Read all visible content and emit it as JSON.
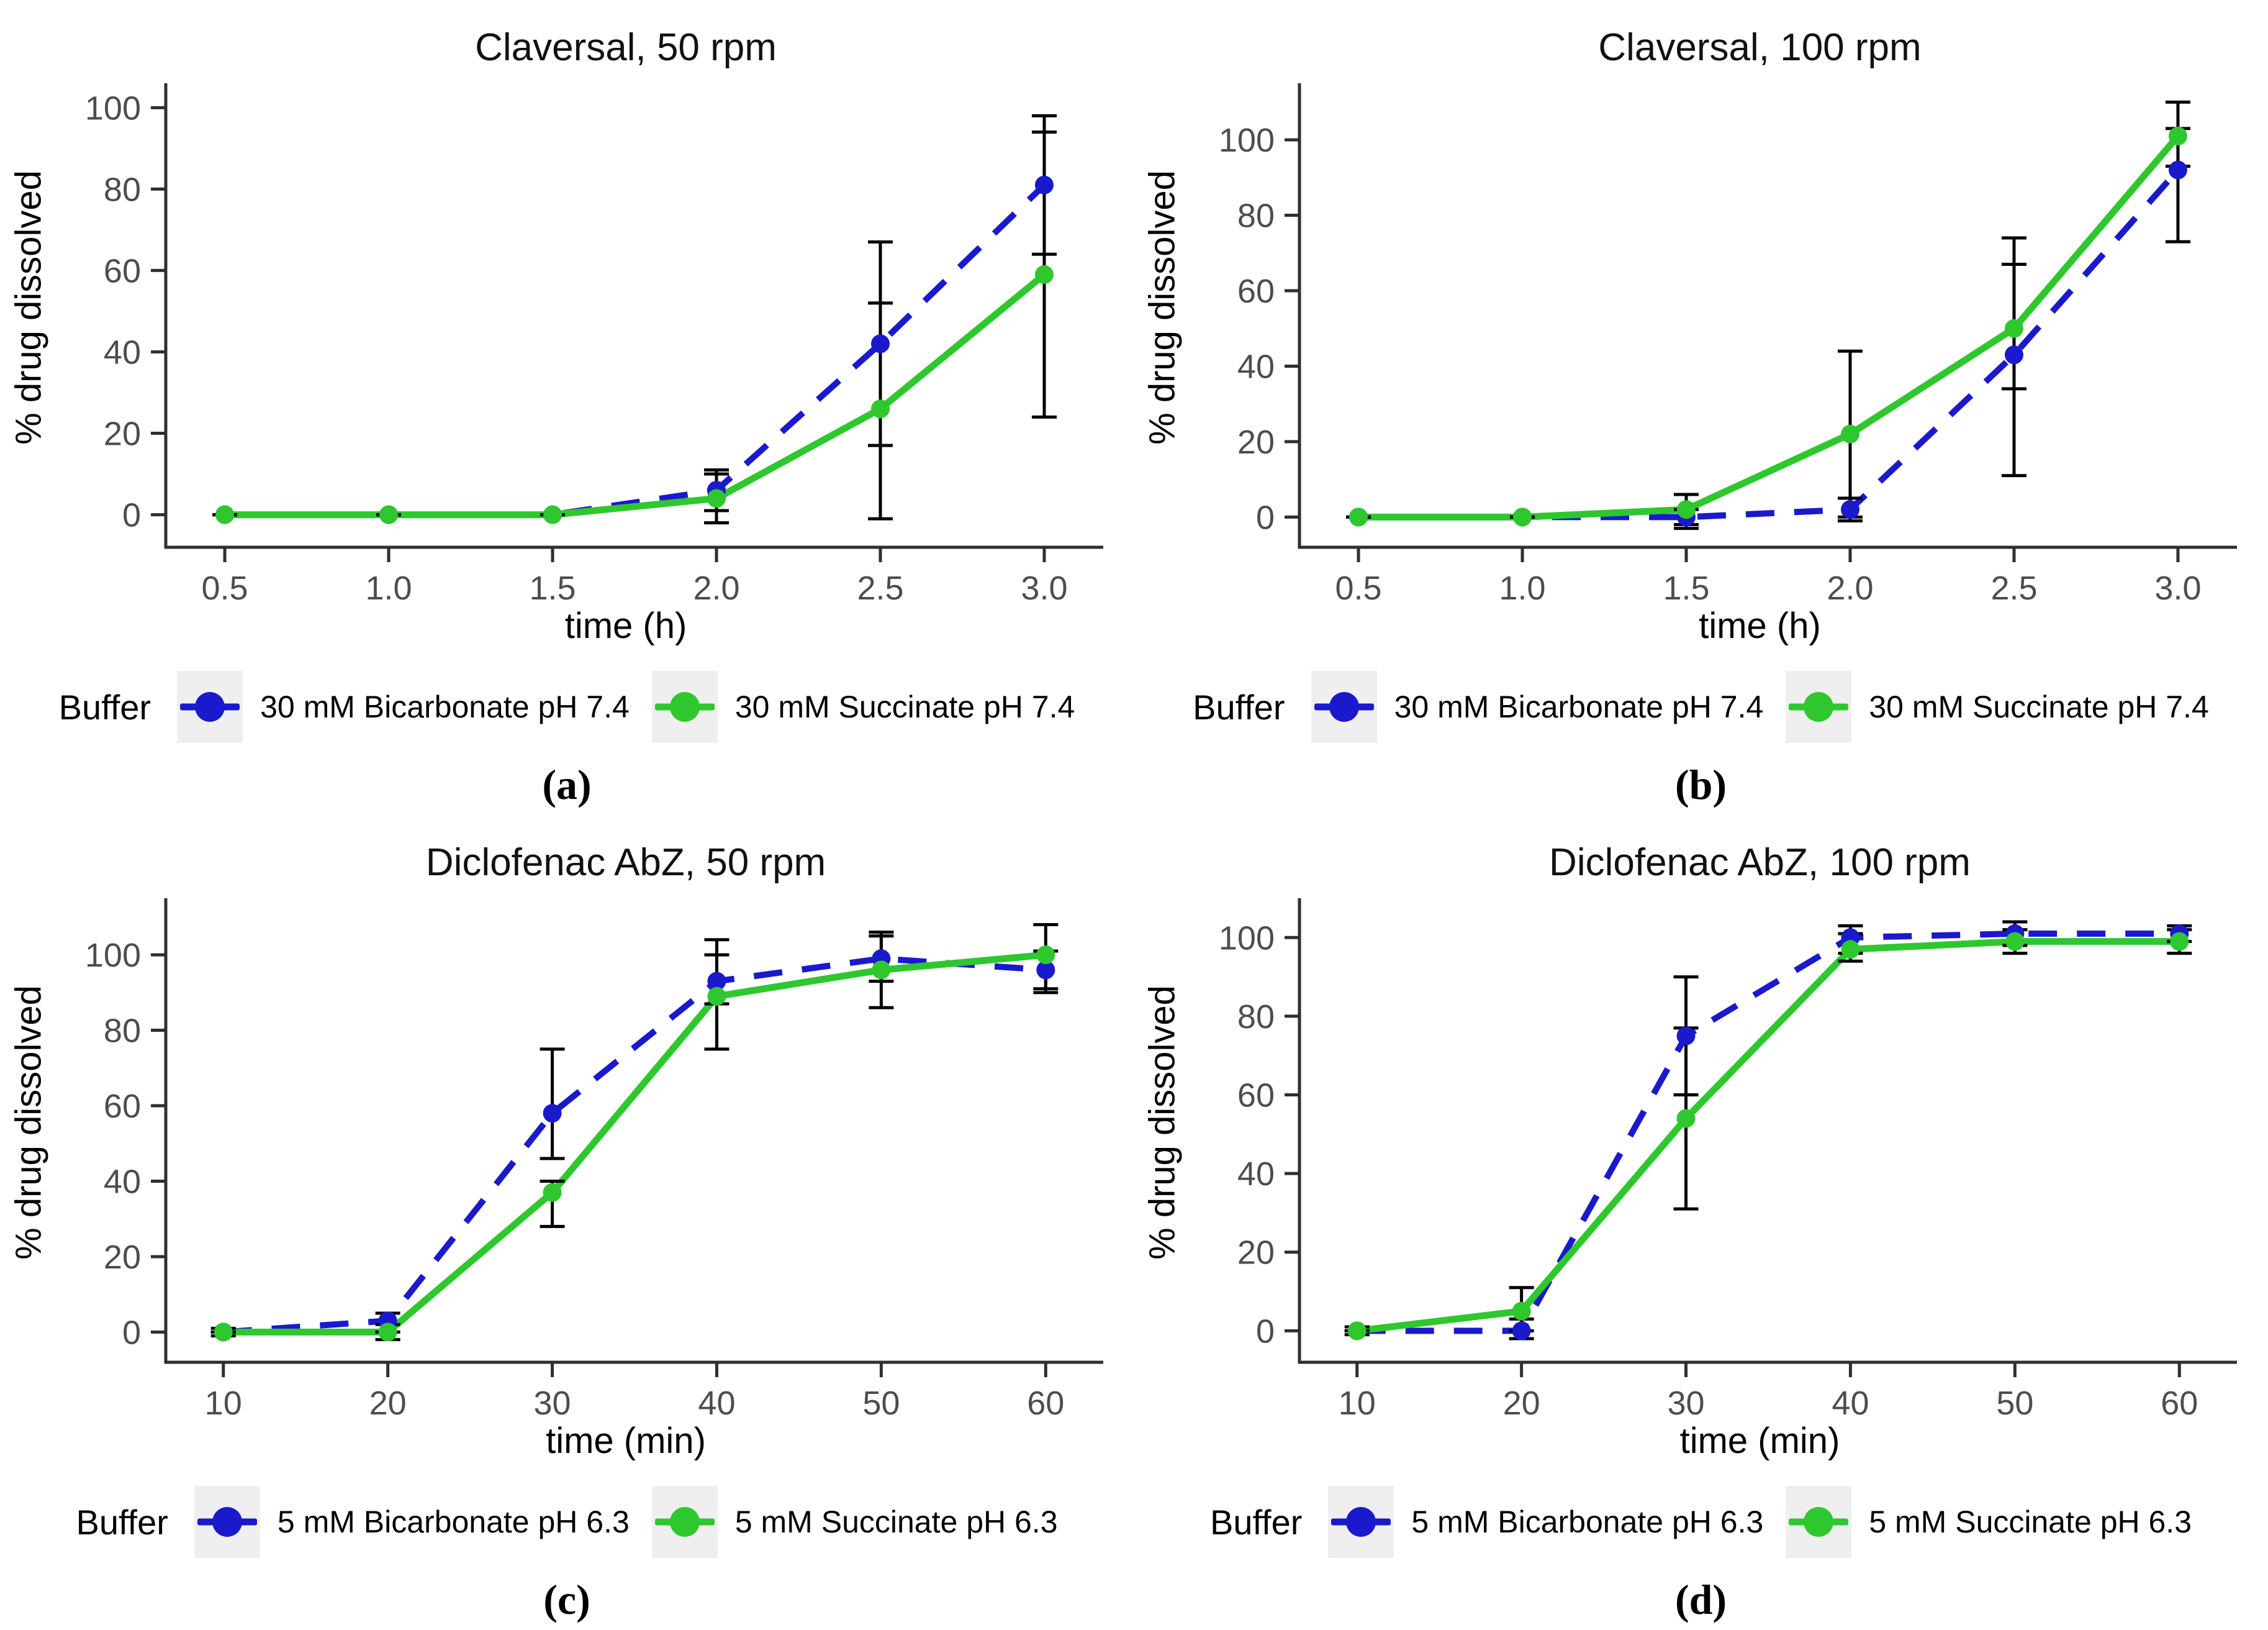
{
  "page": {
    "background": "#ffffff"
  },
  "colors": {
    "bicarbonate": "#1a1acc",
    "succinate": "#2ec82e",
    "error": "#000000",
    "axis_line": "#2f2f2f",
    "tick_label": "#4d4d4d",
    "title_text": "#111111",
    "legend_key_bg": "#efefef"
  },
  "chart_data": [
    {
      "id": "a",
      "type": "line",
      "title": "Claversal, 50 rpm",
      "xlabel": "time (h)",
      "ylabel": "% drug dissolved",
      "legend_title": "Buffer",
      "panel_label": "(a)",
      "x": [
        0.5,
        1.0,
        1.5,
        2.0,
        2.5,
        3.0
      ],
      "xtick_labels": [
        "0.5",
        "1.0",
        "1.5",
        "2.0",
        "2.5",
        "3.0"
      ],
      "xlim": [
        0.32,
        3.18
      ],
      "yticks": [
        0,
        20,
        40,
        60,
        80,
        100
      ],
      "ytick_labels": [
        "0",
        "20",
        "40",
        "60",
        "80",
        "100"
      ],
      "ylim": [
        -8,
        106
      ],
      "grid": false,
      "legend_position": "bottom",
      "series": [
        {
          "name": "30 mM Bicarbonate pH 7.4",
          "color_key": "bicarbonate",
          "dash": true,
          "values": [
            0,
            0,
            0,
            6,
            42,
            81
          ],
          "err_lo": [
            0,
            0,
            0,
            1,
            17,
            64
          ],
          "err_hi": [
            0,
            0,
            0,
            11,
            67,
            98
          ]
        },
        {
          "name": "30 mM Succinate pH 7.4",
          "color_key": "succinate",
          "dash": false,
          "values": [
            0,
            0,
            0,
            4,
            26,
            59
          ],
          "err_lo": [
            0,
            0,
            0,
            -2,
            -1,
            24
          ],
          "err_hi": [
            0,
            0,
            0,
            10,
            52,
            94
          ]
        }
      ]
    },
    {
      "id": "b",
      "type": "line",
      "title": "Claversal, 100 rpm",
      "xlabel": "time (h)",
      "ylabel": "% drug dissolved",
      "legend_title": "Buffer",
      "panel_label": "(b)",
      "x": [
        0.5,
        1.0,
        1.5,
        2.0,
        2.5,
        3.0
      ],
      "xtick_labels": [
        "0.5",
        "1.0",
        "1.5",
        "2.0",
        "2.5",
        "3.0"
      ],
      "xlim": [
        0.32,
        3.18
      ],
      "yticks": [
        0,
        20,
        40,
        60,
        80,
        100
      ],
      "ytick_labels": [
        "0",
        "20",
        "40",
        "60",
        "80",
        "100"
      ],
      "ylim": [
        -8,
        115
      ],
      "grid": false,
      "legend_position": "bottom",
      "series": [
        {
          "name": "30 mM Bicarbonate pH 7.4",
          "color_key": "bicarbonate",
          "dash": true,
          "values": [
            0,
            0,
            0,
            2,
            43,
            92
          ],
          "err_lo": [
            0,
            0,
            -2,
            -1,
            11,
            73
          ],
          "err_hi": [
            0,
            0,
            2,
            5,
            67,
            103
          ]
        },
        {
          "name": "30 mM Succinate pH 7.4",
          "color_key": "succinate",
          "dash": false,
          "values": [
            0,
            0,
            2,
            22,
            50,
            101
          ],
          "err_lo": [
            0,
            0,
            -3,
            0,
            34,
            93
          ],
          "err_hi": [
            0,
            0,
            6,
            44,
            74,
            110
          ]
        }
      ]
    },
    {
      "id": "c",
      "type": "line",
      "title": "Diclofenac AbZ, 50 rpm",
      "xlabel": "time (min)",
      "ylabel": "% drug dissolved",
      "legend_title": "Buffer",
      "panel_label": "(c)",
      "x": [
        10,
        20,
        30,
        40,
        50,
        60
      ],
      "xtick_labels": [
        "10",
        "20",
        "30",
        "40",
        "50",
        "60"
      ],
      "xlim": [
        6.5,
        63.5
      ],
      "yticks": [
        0,
        20,
        40,
        60,
        80,
        100
      ],
      "ytick_labels": [
        "0",
        "20",
        "40",
        "60",
        "80",
        "100"
      ],
      "ylim": [
        -8,
        115
      ],
      "grid": false,
      "legend_position": "bottom",
      "series": [
        {
          "name": "5 mM Bicarbonate pH 6.3",
          "color_key": "bicarbonate",
          "dash": true,
          "values": [
            0,
            3,
            58,
            93,
            99,
            96
          ],
          "err_lo": [
            0,
            0,
            46,
            87,
            93,
            91
          ],
          "err_hi": [
            0,
            5,
            75,
            100,
            106,
            101
          ]
        },
        {
          "name": "5 mM Succinate pH 6.3",
          "color_key": "succinate",
          "dash": false,
          "values": [
            0,
            0,
            37,
            89,
            96,
            100
          ],
          "err_lo": [
            -1,
            -2,
            28,
            75,
            86,
            90
          ],
          "err_hi": [
            1,
            2,
            40,
            104,
            105,
            108
          ]
        }
      ]
    },
    {
      "id": "d",
      "type": "line",
      "title": "Diclofenac AbZ, 100 rpm",
      "xlabel": "time (min)",
      "ylabel": "% drug dissolved",
      "legend_title": "Buffer",
      "panel_label": "(d)",
      "x": [
        10,
        20,
        30,
        40,
        50,
        60
      ],
      "xtick_labels": [
        "10",
        "20",
        "30",
        "40",
        "50",
        "60"
      ],
      "xlim": [
        6.5,
        63.5
      ],
      "yticks": [
        0,
        20,
        40,
        60,
        80,
        100
      ],
      "ytick_labels": [
        "0",
        "20",
        "40",
        "60",
        "80",
        "100"
      ],
      "ylim": [
        -8,
        110
      ],
      "grid": false,
      "legend_position": "bottom",
      "series": [
        {
          "name": "5 mM Bicarbonate pH 6.3",
          "color_key": "bicarbonate",
          "dash": true,
          "values": [
            0,
            0,
            75,
            100,
            101,
            101
          ],
          "err_lo": [
            0,
            -2,
            60,
            96,
            98,
            99
          ],
          "err_hi": [
            0,
            3,
            90,
            103,
            104,
            103
          ]
        },
        {
          "name": "5 mM Succinate pH 6.3",
          "color_key": "succinate",
          "dash": false,
          "values": [
            0,
            5,
            54,
            97,
            99,
            99
          ],
          "err_lo": [
            -1,
            0,
            31,
            94,
            96,
            96
          ],
          "err_hi": [
            1,
            11,
            77,
            101,
            102,
            102
          ]
        }
      ]
    }
  ]
}
